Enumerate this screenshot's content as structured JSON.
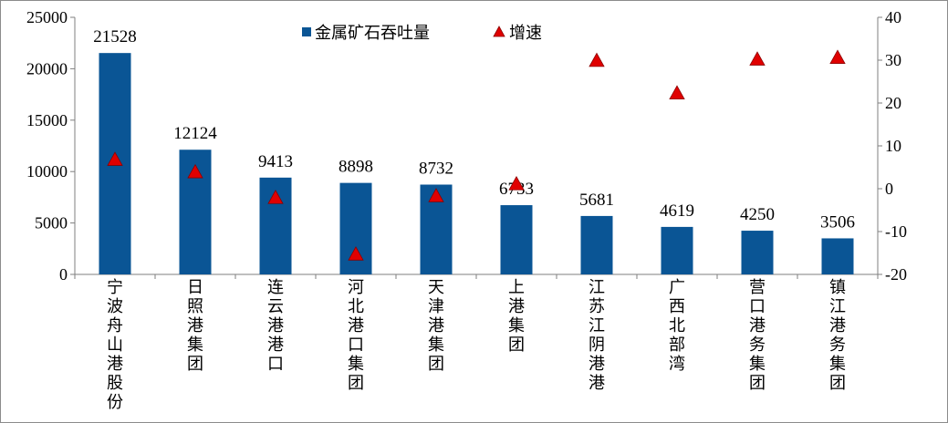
{
  "chart_data": {
    "type": "bar+scatter",
    "categories": [
      "宁波舟山港股份",
      "日照港集团",
      "连云港港口",
      "河北港口集团",
      "天津港集团",
      "上港集团",
      "江苏江阴港港",
      "广西北部湾",
      "营口港务集团",
      "镇江港务集团"
    ],
    "series": [
      {
        "name": "金属矿石吞吐量",
        "type": "bar",
        "axis": "left",
        "values": [
          21528,
          12124,
          9413,
          8898,
          8732,
          6733,
          5681,
          4619,
          4250,
          3506
        ],
        "labels": [
          "21528",
          "12124",
          "9413",
          "8898",
          "8732",
          "6733",
          "5681",
          "4619",
          "4250",
          "3506"
        ]
      },
      {
        "name": "增速",
        "type": "scatter",
        "axis": "right",
        "values": [
          6.8,
          3.9,
          -2.1,
          -15.3,
          -1.7,
          1.1,
          29.9,
          22.3,
          30.2,
          30.6
        ]
      }
    ],
    "y_left": {
      "min": 0,
      "max": 25000,
      "ticks": [
        "0",
        "5000",
        "10000",
        "15000",
        "20000",
        "25000"
      ]
    },
    "y_right": {
      "min": -20,
      "max": 40,
      "ticks": [
        "-20",
        "-10",
        "0",
        "10",
        "20",
        "30",
        "40"
      ]
    },
    "legend_position": "top-center",
    "grid": false,
    "colors": {
      "bar": "#0a5595",
      "marker": "#e00000",
      "marker_edge": "#8b0000",
      "axis": "#7f7f7f"
    }
  }
}
